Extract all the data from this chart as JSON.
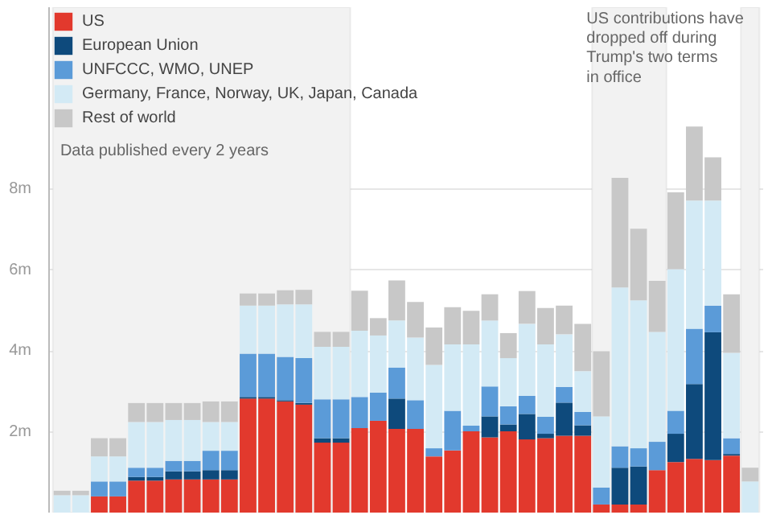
{
  "chart_data": {
    "type": "bar",
    "stacked": true,
    "categories": [
      null,
      null,
      null,
      null,
      null,
      null,
      null,
      null,
      null,
      null,
      null,
      null,
      null,
      null,
      null,
      null,
      null,
      null,
      null,
      null,
      null,
      null,
      null,
      null,
      null,
      null,
      null,
      null,
      null,
      null,
      null,
      null,
      null,
      null,
      null,
      null,
      null,
      null
    ],
    "series": [
      {
        "name": "US",
        "color": "#e2392d",
        "values": [
          null,
          null,
          0.4,
          0.4,
          0.79,
          0.79,
          0.82,
          0.82,
          0.82,
          0.82,
          2.82,
          2.82,
          2.75,
          2.67,
          1.73,
          1.73,
          2.09,
          2.27,
          2.07,
          2.07,
          1.39,
          1.54,
          2.01,
          1.86,
          2.01,
          1.81,
          1.84,
          1.9,
          1.9,
          0.2,
          0.2,
          0.2,
          1.05,
          1.25,
          1.33,
          1.3,
          1.41,
          null
        ]
      },
      {
        "name": "European Union",
        "color": "#0e4a7c",
        "values": [
          null,
          null,
          null,
          null,
          0.09,
          0.09,
          0.2,
          0.2,
          0.23,
          0.23,
          0.04,
          0.04,
          0.03,
          0.04,
          0.11,
          0.11,
          null,
          null,
          0.75,
          null,
          null,
          null,
          null,
          0.52,
          0.17,
          0.63,
          0.11,
          0.82,
          0.26,
          null,
          0.91,
          0.94,
          null,
          0.7,
          1.85,
          3.16,
          0.04,
          null
        ]
      },
      {
        "name": "UNFCCC, WMO, UNEP",
        "color": "#5b9bd8",
        "values": [
          null,
          null,
          0.37,
          0.37,
          0.23,
          0.23,
          0.26,
          0.26,
          0.48,
          0.48,
          1.07,
          1.07,
          1.07,
          1.11,
          0.96,
          0.96,
          0.77,
          0.7,
          0.77,
          0.71,
          0.2,
          0.98,
          0.14,
          0.74,
          0.45,
          0.45,
          0.42,
          0.39,
          0.33,
          0.42,
          0.53,
          0.45,
          0.7,
          0.57,
          1.37,
          0.66,
          0.39,
          null
        ]
      },
      {
        "name": "Germany, France, Norway, UK, Japan, Canada",
        "color": "#d3eaf5",
        "values": [
          0.43,
          0.43,
          0.62,
          0.62,
          1.13,
          1.13,
          1.01,
          1.01,
          0.71,
          0.71,
          1.19,
          1.19,
          1.3,
          1.33,
          1.3,
          1.3,
          1.64,
          1.41,
          1.16,
          1.55,
          2.06,
          1.64,
          2.01,
          1.63,
          1.19,
          1.78,
          1.79,
          1.3,
          1.01,
          1.76,
          3.93,
          3.66,
          2.72,
          3.5,
          3.17,
          2.6,
          2.11,
          0.77
        ]
      },
      {
        "name": "Rest of world",
        "color": "#c8c8c8",
        "values": [
          0.11,
          0.11,
          0.45,
          0.45,
          0.47,
          0.47,
          0.42,
          0.42,
          0.51,
          0.51,
          0.3,
          0.3,
          0.35,
          0.36,
          0.37,
          0.37,
          0.99,
          0.43,
          0.99,
          0.88,
          0.93,
          0.92,
          0.83,
          0.65,
          0.62,
          0.81,
          0.9,
          0.71,
          1.17,
          1.61,
          2.71,
          1.77,
          1.26,
          1.9,
          1.83,
          1.07,
          1.45,
          0.34
        ]
      }
    ],
    "ylim": [
      0,
      12.5
    ],
    "yticks": [
      {
        "value": 2,
        "label": "2m"
      },
      {
        "value": 4,
        "label": "4m"
      },
      {
        "value": 6,
        "label": "6m"
      },
      {
        "value": 8,
        "label": "8m"
      }
    ],
    "grid": "y",
    "legend": "top left",
    "tick_labels": "y",
    "annotations": [
      "Data published every 2 years",
      "US contributions have\ndropped off during\nTrump's two terms\nin office"
    ]
  }
}
